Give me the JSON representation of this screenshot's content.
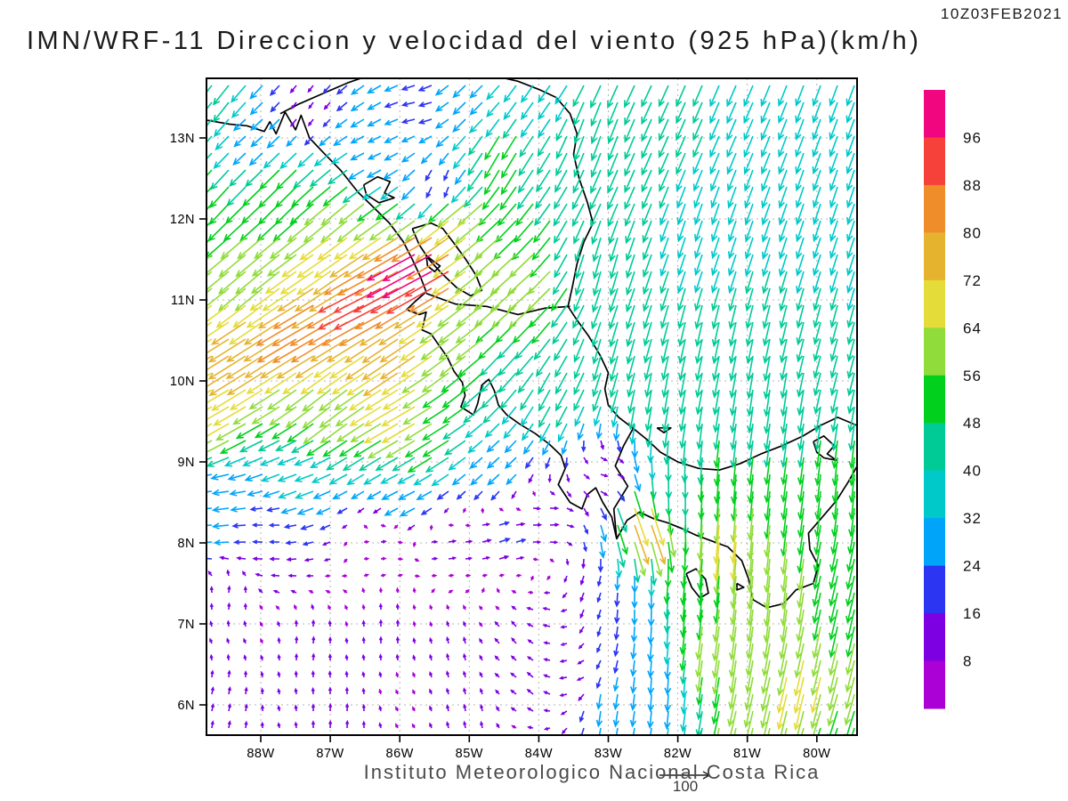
{
  "header": {
    "timestamp": "10Z03FEB2021",
    "title": "IMN/WRF-11 Direccion y velocidad del viento (925 hPa)(km/h)"
  },
  "footer": {
    "institution": "Instituto Meteorologico Nacional Costa Rica",
    "reference_arrow_label": "100"
  },
  "chart_data": {
    "type": "vector-field-map",
    "variable": "Direccion y velocidad del viento",
    "level": "925 hPa",
    "units": "km/h",
    "reference_arrow_kmh": 100,
    "lon_west_range": [
      88.78,
      79.42
    ],
    "lat_range": [
      5.63,
      13.74
    ],
    "x_ticks": [
      {
        "label": "88W",
        "lon": 88
      },
      {
        "label": "87W",
        "lon": 87
      },
      {
        "label": "86W",
        "lon": 86
      },
      {
        "label": "85W",
        "lon": 85
      },
      {
        "label": "84W",
        "lon": 84
      },
      {
        "label": "83W",
        "lon": 83
      },
      {
        "label": "82W",
        "lon": 82
      },
      {
        "label": "81W",
        "lon": 81
      },
      {
        "label": "80W",
        "lon": 80
      }
    ],
    "y_ticks": [
      {
        "label": "13N",
        "lat": 13
      },
      {
        "label": "12N",
        "lat": 12
      },
      {
        "label": "11N",
        "lat": 11
      },
      {
        "label": "10N",
        "lat": 10
      },
      {
        "label": "9N",
        "lat": 9
      },
      {
        "label": "8N",
        "lat": 8
      },
      {
        "label": "7N",
        "lat": 7
      },
      {
        "label": "6N",
        "lat": 6
      }
    ],
    "colorbar": {
      "labels": [
        96,
        88,
        80,
        72,
        64,
        56,
        48,
        40,
        32,
        24,
        16,
        8
      ],
      "thresholds": [
        8,
        16,
        24,
        32,
        40,
        48,
        56,
        64,
        72,
        80,
        88,
        96
      ],
      "colors_ascending": [
        "#AB00D6",
        "#7D00E3",
        "#2B35F2",
        "#00A5FA",
        "#00C9C9",
        "#00CB97",
        "#01D01D",
        "#90DC3A",
        "#E4DC38",
        "#E6B32F",
        "#F08D2B",
        "#F6413B",
        "#F2067F"
      ]
    },
    "wind_control_points_lon_lat_dirTo_kmh": [
      [
        79.6,
        13.6,
        200,
        38
      ],
      [
        81.5,
        13.5,
        203,
        40
      ],
      [
        83.2,
        13.1,
        200,
        46
      ],
      [
        79.7,
        12.0,
        198,
        38
      ],
      [
        81.6,
        11.8,
        198,
        38
      ],
      [
        83.1,
        11.5,
        195,
        44
      ],
      [
        79.8,
        10.4,
        195,
        40
      ],
      [
        81.6,
        10.4,
        192,
        44
      ],
      [
        82.9,
        10.4,
        195,
        46
      ],
      [
        80.6,
        9.6,
        188,
        48
      ],
      [
        82.2,
        9.8,
        190,
        44
      ],
      [
        84.5,
        12.8,
        210,
        52
      ],
      [
        84.0,
        13.5,
        215,
        36
      ],
      [
        84.9,
        13.45,
        225,
        30
      ],
      [
        85.7,
        13.35,
        258,
        22
      ],
      [
        86.3,
        12.85,
        245,
        24
      ],
      [
        87.3,
        13.38,
        215,
        12
      ],
      [
        88.15,
        13.05,
        228,
        26
      ],
      [
        88.6,
        13.45,
        218,
        45
      ],
      [
        88.65,
        12.4,
        222,
        50
      ],
      [
        87.6,
        12.35,
        225,
        52
      ],
      [
        86.8,
        12.05,
        230,
        60
      ],
      [
        85.35,
        12.42,
        190,
        16
      ],
      [
        85.15,
        12.05,
        232,
        72
      ],
      [
        85.6,
        11.45,
        242,
        102
      ],
      [
        86.35,
        11.05,
        243,
        96
      ],
      [
        87.25,
        10.7,
        240,
        85
      ],
      [
        88.25,
        10.35,
        238,
        78
      ],
      [
        88.7,
        9.7,
        240,
        72
      ],
      [
        86.05,
        10.35,
        236,
        76
      ],
      [
        87.0,
        9.75,
        232,
        62
      ],
      [
        88.1,
        11.3,
        230,
        62
      ],
      [
        86.9,
        11.5,
        235,
        72
      ],
      [
        84.2,
        11.2,
        228,
        62
      ],
      [
        84.35,
        10.35,
        222,
        46
      ],
      [
        83.75,
        9.9,
        208,
        42
      ],
      [
        84.9,
        10.6,
        232,
        60
      ],
      [
        85.45,
        9.35,
        238,
        55
      ],
      [
        85.9,
        9.55,
        240,
        70
      ],
      [
        84.6,
        8.95,
        228,
        28
      ],
      [
        85.85,
        8.65,
        243,
        32
      ],
      [
        87.4,
        8.85,
        250,
        34
      ],
      [
        88.55,
        8.4,
        262,
        28
      ],
      [
        88.7,
        8.3,
        268,
        30
      ],
      [
        87.9,
        8.1,
        272,
        16
      ],
      [
        86.3,
        7.97,
        82,
        9
      ],
      [
        85.3,
        7.95,
        80,
        13
      ],
      [
        84.55,
        8.05,
        72,
        20
      ],
      [
        83.9,
        8.25,
        85,
        15
      ],
      [
        88.45,
        7.35,
        8,
        11
      ],
      [
        87.3,
        6.75,
        4,
        11
      ],
      [
        86.2,
        6.9,
        0,
        11
      ],
      [
        85.2,
        6.62,
        348,
        11
      ],
      [
        84.35,
        6.85,
        322,
        12
      ],
      [
        88.55,
        6.0,
        12,
        12
      ],
      [
        86.9,
        5.8,
        2,
        12
      ],
      [
        85.0,
        5.85,
        350,
        11
      ],
      [
        84.05,
        6.25,
        312,
        13
      ],
      [
        83.55,
        6.3,
        262,
        12
      ],
      [
        83.25,
        7.35,
        200,
        16
      ],
      [
        83.85,
        7.1,
        285,
        12
      ],
      [
        83.05,
        8.85,
        100,
        12
      ],
      [
        82.5,
        8.3,
        160,
        78
      ],
      [
        82.6,
        7.3,
        180,
        26
      ],
      [
        82.25,
        6.3,
        183,
        30
      ],
      [
        82.05,
        8.65,
        180,
        42
      ],
      [
        81.35,
        8.15,
        185,
        70
      ],
      [
        81.45,
        6.8,
        188,
        62
      ],
      [
        80.65,
        7.6,
        186,
        60
      ],
      [
        80.2,
        6.3,
        193,
        66
      ],
      [
        79.6,
        7.5,
        193,
        55
      ],
      [
        79.55,
        8.9,
        186,
        50
      ],
      [
        80.9,
        9.5,
        188,
        46
      ],
      [
        81.25,
        8.8,
        185,
        52
      ],
      [
        81.9,
        7.55,
        185,
        52
      ],
      [
        83.05,
        6.0,
        188,
        28
      ],
      [
        80.95,
        5.75,
        193,
        62
      ],
      [
        79.8,
        5.7,
        198,
        55
      ]
    ],
    "coastline_segments": [
      [
        [
          88.78,
          13.22
        ],
        [
          88.45,
          13.17
        ],
        [
          88.2,
          13.15
        ],
        [
          87.95,
          13.08
        ],
        [
          87.87,
          13.2
        ],
        [
          87.78,
          13.05
        ],
        [
          87.65,
          13.32
        ],
        [
          87.5,
          13.1
        ],
        [
          87.42,
          13.28
        ],
        [
          87.3,
          13.0
        ],
        [
          87.1,
          12.82
        ],
        [
          86.85,
          12.6
        ],
        [
          86.6,
          12.33
        ],
        [
          86.35,
          12.12
        ],
        [
          86.15,
          11.95
        ],
        [
          85.95,
          11.72
        ],
        [
          85.82,
          11.5
        ],
        [
          85.7,
          11.28
        ],
        [
          85.62,
          11.1
        ],
        [
          85.78,
          10.98
        ],
        [
          85.9,
          10.88
        ],
        [
          85.72,
          10.82
        ],
        [
          85.62,
          10.85
        ],
        [
          85.68,
          10.63
        ],
        [
          85.55,
          10.58
        ],
        [
          85.42,
          10.42
        ],
        [
          85.32,
          10.3
        ],
        [
          85.22,
          10.12
        ],
        [
          85.1,
          9.98
        ],
        [
          85.06,
          9.82
        ],
        [
          85.12,
          9.68
        ],
        [
          84.94,
          9.58
        ],
        [
          84.88,
          9.72
        ],
        [
          84.82,
          9.95
        ],
        [
          84.72,
          10.02
        ],
        [
          84.64,
          9.88
        ],
        [
          84.58,
          9.7
        ],
        [
          84.46,
          9.58
        ],
        [
          84.28,
          9.47
        ],
        [
          84.05,
          9.35
        ],
        [
          83.85,
          9.22
        ],
        [
          83.68,
          9.08
        ],
        [
          83.62,
          8.92
        ],
        [
          83.72,
          8.72
        ],
        [
          83.55,
          8.5
        ],
        [
          83.38,
          8.42
        ],
        [
          83.3,
          8.6
        ],
        [
          83.18,
          8.68
        ],
        [
          83.08,
          8.5
        ],
        [
          82.95,
          8.32
        ],
        [
          82.88,
          8.05
        ],
        [
          82.73,
          8.28
        ],
        [
          82.55,
          8.38
        ],
        [
          82.35,
          8.3
        ],
        [
          82.15,
          8.25
        ],
        [
          81.95,
          8.18
        ],
        [
          81.75,
          8.1
        ],
        [
          81.5,
          8.02
        ],
        [
          81.28,
          7.95
        ],
        [
          81.08,
          7.78
        ],
        [
          80.98,
          7.55
        ],
        [
          80.92,
          7.3
        ],
        [
          80.72,
          7.2
        ],
        [
          80.48,
          7.25
        ],
        [
          80.3,
          7.42
        ],
        [
          80.05,
          7.5
        ],
        [
          79.98,
          7.72
        ],
        [
          80.1,
          7.92
        ],
        [
          80.12,
          8.12
        ],
        [
          79.92,
          8.32
        ],
        [
          79.72,
          8.52
        ],
        [
          79.55,
          8.75
        ],
        [
          79.42,
          8.95
        ]
      ],
      [
        [
          79.42,
          9.45
        ],
        [
          79.7,
          9.55
        ],
        [
          79.95,
          9.45
        ],
        [
          80.2,
          9.32
        ],
        [
          80.5,
          9.2
        ],
        [
          80.8,
          9.1
        ],
        [
          81.1,
          8.98
        ],
        [
          81.4,
          8.9
        ],
        [
          81.7,
          8.92
        ],
        [
          82.0,
          9.0
        ],
        [
          82.25,
          9.12
        ],
        [
          82.45,
          9.28
        ],
        [
          82.65,
          9.42
        ],
        [
          82.85,
          9.55
        ],
        [
          83.0,
          9.7
        ],
        [
          83.05,
          9.9
        ],
        [
          83.0,
          10.1
        ],
        [
          83.12,
          10.32
        ],
        [
          83.28,
          10.55
        ],
        [
          83.45,
          10.75
        ],
        [
          83.58,
          10.92
        ],
        [
          83.52,
          11.15
        ],
        [
          83.45,
          11.45
        ],
        [
          83.35,
          11.72
        ],
        [
          83.22,
          11.95
        ],
        [
          83.3,
          12.2
        ],
        [
          83.42,
          12.5
        ],
        [
          83.5,
          12.8
        ],
        [
          83.45,
          13.05
        ],
        [
          83.55,
          13.3
        ],
        [
          83.75,
          13.5
        ],
        [
          84.0,
          13.6
        ],
        [
          84.3,
          13.7
        ],
        [
          84.5,
          13.74
        ]
      ],
      [
        [
          87.72,
          13.3
        ],
        [
          87.45,
          13.42
        ],
        [
          87.1,
          13.55
        ],
        [
          86.75,
          13.68
        ],
        [
          86.55,
          13.74
        ]
      ],
      [
        [
          85.62,
          11.08
        ],
        [
          85.2,
          10.95
        ],
        [
          84.75,
          10.92
        ],
        [
          84.3,
          10.82
        ],
        [
          83.9,
          10.9
        ],
        [
          83.55,
          10.92
        ]
      ],
      [
        [
          82.62,
          9.45
        ],
        [
          82.78,
          9.2
        ],
        [
          82.9,
          8.95
        ],
        [
          82.72,
          8.7
        ],
        [
          82.92,
          8.42
        ],
        [
          82.88,
          8.05
        ]
      ],
      [
        [
          85.82,
          11.88
        ],
        [
          85.55,
          11.95
        ],
        [
          85.38,
          11.88
        ],
        [
          85.22,
          11.7
        ],
        [
          85.05,
          11.5
        ],
        [
          84.9,
          11.3
        ],
        [
          84.82,
          11.12
        ],
        [
          84.98,
          11.05
        ],
        [
          85.18,
          11.15
        ],
        [
          85.4,
          11.33
        ],
        [
          85.58,
          11.5
        ],
        [
          85.72,
          11.68
        ],
        [
          85.82,
          11.88
        ]
      ],
      [
        [
          86.52,
          12.42
        ],
        [
          86.32,
          12.52
        ],
        [
          86.14,
          12.46
        ],
        [
          86.22,
          12.32
        ],
        [
          86.08,
          12.26
        ],
        [
          86.3,
          12.2
        ],
        [
          86.48,
          12.3
        ],
        [
          86.52,
          12.42
        ]
      ],
      [
        [
          85.62,
          11.55
        ],
        [
          85.52,
          11.48
        ],
        [
          85.42,
          11.42
        ],
        [
          85.5,
          11.35
        ],
        [
          85.6,
          11.42
        ],
        [
          85.62,
          11.55
        ]
      ],
      [
        [
          81.88,
          7.62
        ],
        [
          81.74,
          7.68
        ],
        [
          81.6,
          7.55
        ],
        [
          81.56,
          7.38
        ],
        [
          81.68,
          7.32
        ],
        [
          81.8,
          7.45
        ],
        [
          81.88,
          7.62
        ]
      ],
      [
        [
          82.3,
          9.42
        ],
        [
          82.2,
          9.36
        ],
        [
          82.1,
          9.42
        ],
        [
          82.3,
          9.42
        ]
      ],
      [
        [
          81.15,
          7.5
        ],
        [
          81.05,
          7.45
        ],
        [
          81.15,
          7.42
        ],
        [
          81.15,
          7.5
        ]
      ],
      [
        [
          80.05,
          9.25
        ],
        [
          79.9,
          9.32
        ],
        [
          79.75,
          9.2
        ],
        [
          79.85,
          9.1
        ],
        [
          79.72,
          9.02
        ],
        [
          79.9,
          9.05
        ],
        [
          80.0,
          9.12
        ],
        [
          80.05,
          9.25
        ]
      ]
    ]
  }
}
